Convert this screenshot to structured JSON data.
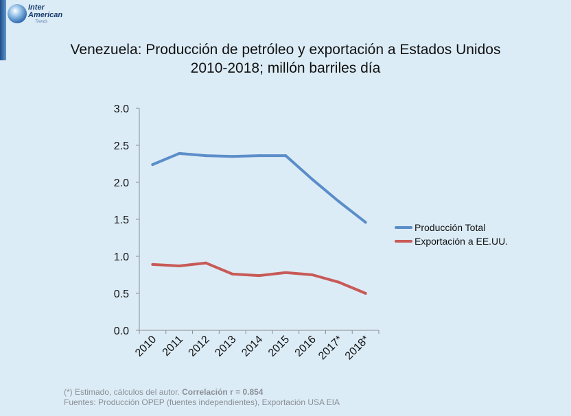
{
  "branding": {
    "logo_line1": "Inter",
    "logo_line2": "American",
    "logo_line3": "Trends"
  },
  "title": {
    "line1": "Venezuela: Producción de petróleo y exportación a Estados Unidos",
    "line2": "2010-2018; millón barriles día"
  },
  "footer": {
    "note_prefix": "(*) Estimado, cálculos del autor. ",
    "note_bold": "Correlación r = 0.854",
    "sources": "Fuentes: Producción OPEP (fuentes independientes), Exportación USA EIA"
  },
  "chart_data": {
    "type": "line",
    "categories": [
      "2010",
      "2011",
      "2012",
      "2013",
      "2014",
      "2015",
      "2016",
      "2017*",
      "2018*"
    ],
    "series": [
      {
        "name": "Producción Total",
        "color": "#5b8ec9",
        "values": [
          2.24,
          2.39,
          2.36,
          2.35,
          2.36,
          2.36,
          2.04,
          1.74,
          1.46
        ]
      },
      {
        "name": "Exportación a EE.UU.",
        "color": "#c85a57",
        "values": [
          0.89,
          0.87,
          0.91,
          0.76,
          0.74,
          0.78,
          0.75,
          0.65,
          0.5
        ]
      }
    ],
    "yticks": [
      "0.0",
      "0.5",
      "1.0",
      "1.5",
      "2.0",
      "2.5",
      "3.0"
    ],
    "ylim": [
      0,
      3
    ],
    "grid": false,
    "legend_position": "right",
    "axis_color": "#8c8c8c"
  }
}
